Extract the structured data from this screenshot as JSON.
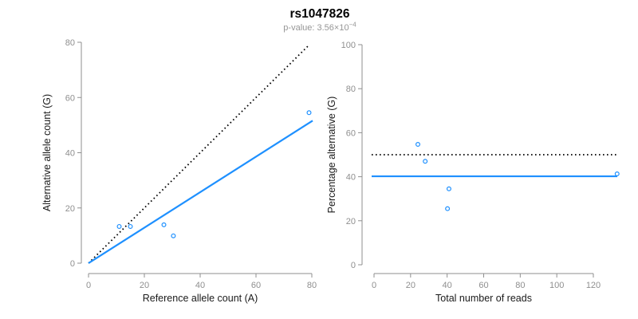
{
  "header": {
    "title": "rs1047826",
    "subtitle_text": "p-value: 3.56×10",
    "subtitle_exponent": "−4"
  },
  "colors": {
    "accent": "#1E90FF",
    "axis": "#8F8F8F",
    "tick_label": "#8F8F8F",
    "axis_title": "#1A1A1A",
    "title": "#000000",
    "subtitle": "#969696",
    "dotted_line": "#000000"
  },
  "chart_data": [
    {
      "type": "scatter",
      "xlabel": "Reference allele count (A)",
      "ylabel": "Alternative allele count (G)",
      "xticks": [
        0,
        20,
        40,
        60,
        80
      ],
      "yticks": [
        0,
        20,
        40,
        60,
        80
      ],
      "xlim": [
        0,
        80
      ],
      "ylim": [
        0,
        80
      ],
      "grid": false,
      "points": [
        [
          11,
          13.3
        ],
        [
          15,
          13.3
        ],
        [
          27,
          13.9
        ],
        [
          30.4,
          9.9
        ],
        [
          79,
          54.5
        ]
      ],
      "lines": [
        {
          "name": "identity-line",
          "style": "dotted",
          "color": "#000000",
          "x1": 0,
          "y1": 0,
          "x2": 79,
          "y2": 79
        },
        {
          "name": "fit-line",
          "style": "solid",
          "color": "#1E90FF",
          "x1": 0,
          "y1": 0,
          "x2": 80.3,
          "y2": 51.6
        }
      ]
    },
    {
      "type": "scatter",
      "xlabel": "Total number of reads",
      "ylabel": "Percentage alternative (G)",
      "xticks": [
        0,
        20,
        40,
        60,
        80,
        100,
        120
      ],
      "yticks": [
        0,
        20,
        40,
        60,
        80,
        100
      ],
      "xlim": [
        0,
        133
      ],
      "ylim": [
        0,
        100
      ],
      "grid": false,
      "points": [
        [
          24,
          54.7
        ],
        [
          28,
          47.0
        ],
        [
          41,
          34.5
        ],
        [
          40.2,
          25.5
        ],
        [
          133,
          41.3
        ]
      ],
      "lines": [
        {
          "name": "expected-percentage-line",
          "style": "dotted",
          "color": "#000000",
          "y": 50
        },
        {
          "name": "observed-percentage-line",
          "style": "solid",
          "color": "#1E90FF",
          "y": 40.2
        }
      ]
    }
  ]
}
